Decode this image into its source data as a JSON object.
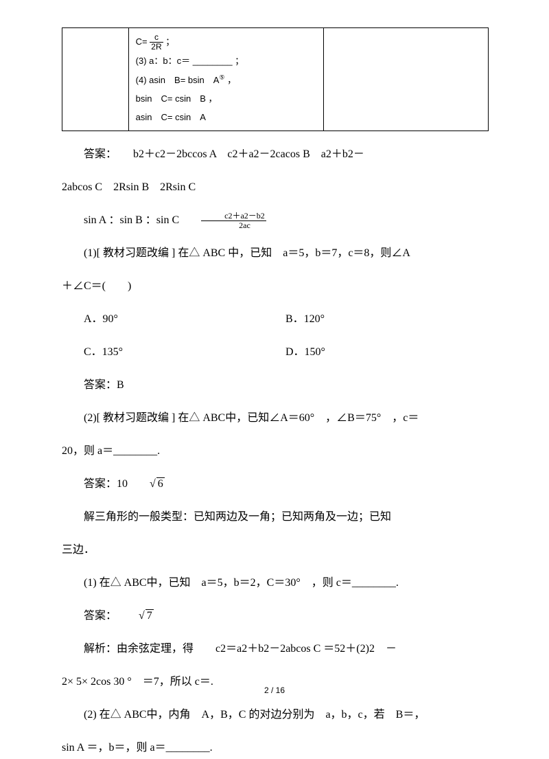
{
  "box": {
    "line1_pre": "C= ",
    "frac_num": "c",
    "frac_den": "2R",
    "line1_post": " ；",
    "line2": "(3) a：b：c＝ ________ ；",
    "line3_pre": "(4) asin　B= bsin　A",
    "line3_sup": "⑤",
    "line3_post": " ，",
    "line4": "bsin　C= csin　B ，",
    "line5": "asin　C= csin　A"
  },
  "ans1": {
    "label": "答案：",
    "text": "　　b2＋c2－2bccos A　c2＋a2－2cacos B　a2＋b2－"
  },
  "ans1b": "2abcos C　2Rsin B　2Rsin C",
  "ans1c_pre": "sin A ：sin B ：sin C　　",
  "ans1c_frac_num": "c2＋a2－b2",
  "ans1c_frac_den": "2ac",
  "q1": "(1)[ 教材习题改编 ] 在△ ABC 中，已知　a＝5，b＝7，c＝8，则∠A",
  "q1b": "＋∠C＝(　　)",
  "choices": {
    "A": "A．90°",
    "B": "B．120°",
    "C": "C．135°",
    "D": "D．150°"
  },
  "ans_q1": "答案：B",
  "q2": "(2)[ 教材习题改编 ] 在△ ABC中，已知∠A＝60°　，∠B＝75°　，c＝",
  "q2b": "20，则 a＝________.",
  "ans_q2_pre": "答案：10",
  "ans_q2_rad": "6",
  "note": "解三角形的一般类型：已知两边及一角；已知两角及一边；已知",
  "note_b": "三边．",
  "q3": "(1) 在△ ABC中，已知　a＝5，b＝2，C＝30°　，则 c＝________.",
  "ans_q3_pre": "答案：",
  "ans_q3_rad": "7",
  "expl": "解析：由余弦定理，得　　c2＝a2＋b2－2abcos C ＝52＋(2)2　－",
  "expl_b": "2× 5× 2cos 30 °　＝7，所以 c＝.",
  "q4": "(2) 在△ ABC中，内角　A，B，C 的对边分别为　a，b，c，若　B＝，",
  "q4b": "sin A ＝，b＝，则 a＝________.",
  "pagenum": "2 / 16"
}
